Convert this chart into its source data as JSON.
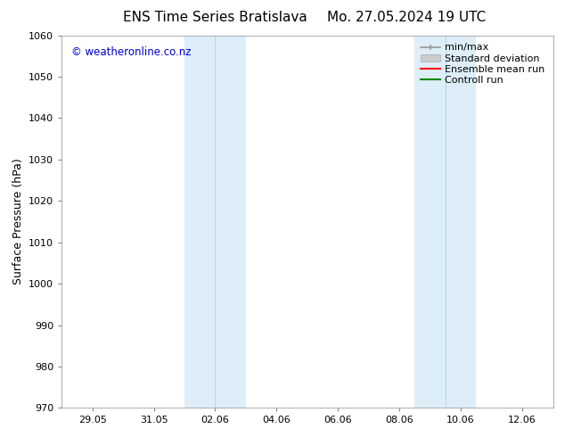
{
  "title": "ENS Time Series Bratislava",
  "title2": "Mo. 27.05.2024 19 UTC",
  "ylabel": "Surface Pressure (hPa)",
  "ylim": [
    970,
    1060
  ],
  "yticks": [
    970,
    980,
    990,
    1000,
    1010,
    1020,
    1030,
    1040,
    1050,
    1060
  ],
  "xlabel_dates": [
    "29.05",
    "31.05",
    "02.06",
    "04.06",
    "06.06",
    "08.06",
    "10.06",
    "12.06"
  ],
  "tick_positions": [
    2,
    4,
    6,
    8,
    10,
    12,
    14,
    16
  ],
  "xlim": [
    1.0,
    17.0
  ],
  "watermark": "© weatheronline.co.nz",
  "watermark_color": "#0000cc",
  "bg_color": "#ffffff",
  "plot_bg_color": "#ffffff",
  "shaded_band1_x1": 5.0,
  "shaded_band1_x2": 7.0,
  "shaded_band2_x1": 12.5,
  "shaded_band2_x2": 14.5,
  "shaded_color": "#ddeef8",
  "legend_labels": [
    "min/max",
    "Standard deviation",
    "Ensemble mean run",
    "Controll run"
  ],
  "minmax_color": "#999999",
  "std_color": "#cccccc",
  "mean_color": "#ff0000",
  "ctrl_color": "#008800",
  "tick_label_fontsize": 8,
  "title_fontsize": 11,
  "axis_label_fontsize": 9,
  "legend_fontsize": 8
}
